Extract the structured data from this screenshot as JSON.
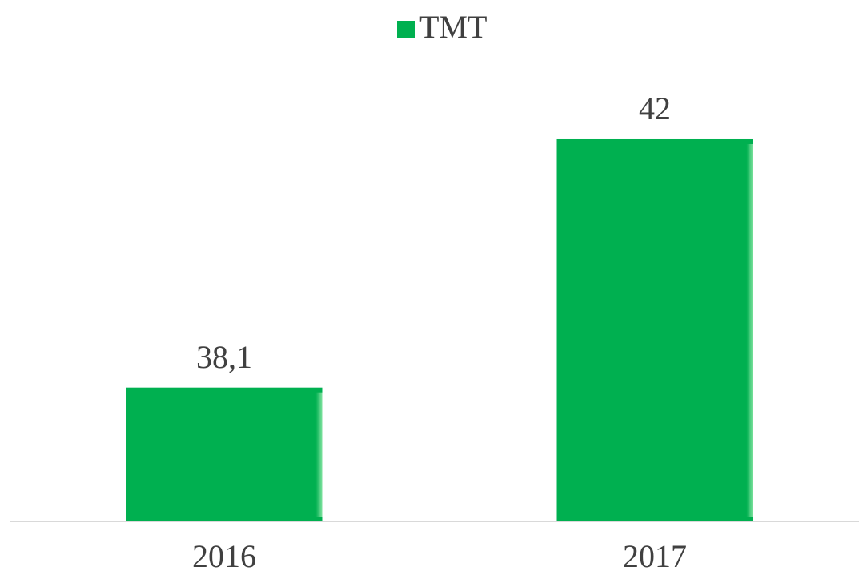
{
  "chart_data": {
    "type": "bar",
    "categories": [
      "2016",
      "2017"
    ],
    "series": [
      {
        "name": "TMT",
        "color": "#00b050",
        "values": [
          38.1,
          42
        ],
        "value_labels": [
          "38,1",
          "42"
        ]
      }
    ],
    "ylim": [
      36,
      43
    ],
    "legend": "top"
  }
}
